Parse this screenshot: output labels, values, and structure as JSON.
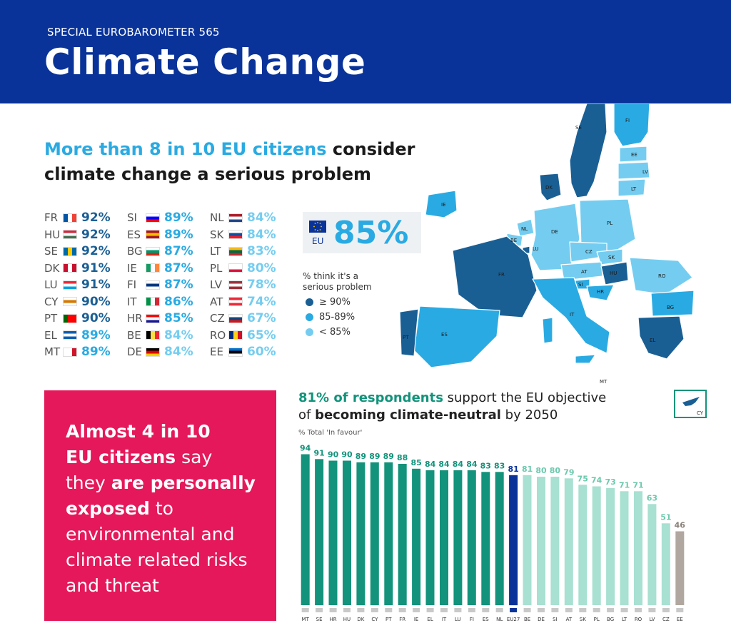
{
  "header": {
    "kicker": "SPECIAL EUROBAROMETER 565",
    "title": "Climate Change"
  },
  "headline": {
    "highlight": "More than 8 in 10 EU citizens",
    "rest1": " consider",
    "rest2": "climate change a serious problem"
  },
  "countries": [
    {
      "code": "FR",
      "value": "92%",
      "flag": [
        "#0055a4",
        "#ffffff",
        "#ef4135"
      ],
      "dir": "v",
      "tier": 1
    },
    {
      "code": "HU",
      "value": "92%",
      "flag": [
        "#cd2a3e",
        "#ffffff",
        "#436f4d"
      ],
      "dir": "h",
      "tier": 1
    },
    {
      "code": "SE",
      "value": "92%",
      "flag": [
        "#006aa7",
        "#fecc00",
        "#006aa7"
      ],
      "dir": "v",
      "tier": 1
    },
    {
      "code": "DK",
      "value": "91%",
      "flag": [
        "#c8102e",
        "#ffffff",
        "#c8102e"
      ],
      "dir": "v",
      "tier": 1
    },
    {
      "code": "LU",
      "value": "91%",
      "flag": [
        "#ed2939",
        "#ffffff",
        "#00a1de"
      ],
      "dir": "h",
      "tier": 1
    },
    {
      "code": "CY",
      "value": "90%",
      "flag": [
        "#ffffff",
        "#d57800",
        "#ffffff"
      ],
      "dir": "h",
      "tier": 1
    },
    {
      "code": "PT",
      "value": "90%",
      "flag": [
        "#006600",
        "#ff0000",
        "#ff0000"
      ],
      "dir": "v",
      "tier": 1
    },
    {
      "code": "EL",
      "value": "89%",
      "flag": [
        "#0d5eaf",
        "#ffffff",
        "#0d5eaf"
      ],
      "dir": "h",
      "tier": 2
    },
    {
      "code": "MT",
      "value": "89%",
      "flag": [
        "#ffffff",
        "#ffffff",
        "#cf142b"
      ],
      "dir": "v",
      "tier": 2
    },
    {
      "code": "SI",
      "value": "89%",
      "flag": [
        "#ffffff",
        "#0000ff",
        "#ff0000"
      ],
      "dir": "h",
      "tier": 2
    },
    {
      "code": "ES",
      "value": "89%",
      "flag": [
        "#aa151b",
        "#f1bf00",
        "#aa151b"
      ],
      "dir": "h",
      "tier": 2
    },
    {
      "code": "BG",
      "value": "87%",
      "flag": [
        "#ffffff",
        "#00966e",
        "#d62612"
      ],
      "dir": "h",
      "tier": 2
    },
    {
      "code": "IE",
      "value": "87%",
      "flag": [
        "#169b62",
        "#ffffff",
        "#ff883e"
      ],
      "dir": "v",
      "tier": 2
    },
    {
      "code": "FI",
      "value": "87%",
      "flag": [
        "#ffffff",
        "#003580",
        "#ffffff"
      ],
      "dir": "h",
      "tier": 2
    },
    {
      "code": "IT",
      "value": "86%",
      "flag": [
        "#009246",
        "#ffffff",
        "#ce2b37"
      ],
      "dir": "v",
      "tier": 2
    },
    {
      "code": "HR",
      "value": "85%",
      "flag": [
        "#ff0000",
        "#ffffff",
        "#171796"
      ],
      "dir": "h",
      "tier": 2
    },
    {
      "code": "BE",
      "value": "84%",
      "flag": [
        "#000000",
        "#fae042",
        "#ed2939"
      ],
      "dir": "v",
      "tier": 3
    },
    {
      "code": "DE",
      "value": "84%",
      "flag": [
        "#000000",
        "#dd0000",
        "#ffce00"
      ],
      "dir": "h",
      "tier": 3
    },
    {
      "code": "NL",
      "value": "84%",
      "flag": [
        "#ae1c28",
        "#ffffff",
        "#21468b"
      ],
      "dir": "h",
      "tier": 3
    },
    {
      "code": "SK",
      "value": "84%",
      "flag": [
        "#ffffff",
        "#0b4ea2",
        "#ee1c25"
      ],
      "dir": "h",
      "tier": 3
    },
    {
      "code": "LT",
      "value": "83%",
      "flag": [
        "#fdb913",
        "#006a44",
        "#c1272d"
      ],
      "dir": "h",
      "tier": 3
    },
    {
      "code": "PL",
      "value": "80%",
      "flag": [
        "#ffffff",
        "#ffffff",
        "#dc143c"
      ],
      "dir": "h",
      "tier": 3
    },
    {
      "code": "LV",
      "value": "78%",
      "flag": [
        "#9e3039",
        "#ffffff",
        "#9e3039"
      ],
      "dir": "h",
      "tier": 3
    },
    {
      "code": "AT",
      "value": "74%",
      "flag": [
        "#ed2939",
        "#ffffff",
        "#ed2939"
      ],
      "dir": "h",
      "tier": 3
    },
    {
      "code": "CZ",
      "value": "67%",
      "flag": [
        "#ffffff",
        "#11457e",
        "#d7141a"
      ],
      "dir": "h",
      "tier": 3
    },
    {
      "code": "RO",
      "value": "65%",
      "flag": [
        "#002b7f",
        "#fcd116",
        "#ce1126"
      ],
      "dir": "v",
      "tier": 3
    },
    {
      "code": "EE",
      "value": "60%",
      "flag": [
        "#0072ce",
        "#000000",
        "#ffffff"
      ],
      "dir": "h",
      "tier": 3
    }
  ],
  "eu_box": {
    "label": "EU",
    "value": "85%"
  },
  "legend": {
    "title_line1": "% think it's a",
    "title_line2": "serious problem",
    "items": [
      {
        "label": "≥ 90%",
        "color": "#1a5f94"
      },
      {
        "label": "85-89%",
        "color": "#2aaae2"
      },
      {
        "label": "< 85%",
        "color": "#74cdf0"
      }
    ]
  },
  "map_labels": [
    "SE",
    "FI",
    "EE",
    "LV",
    "LT",
    "IE",
    "DK",
    "NL",
    "BE",
    "LU",
    "DE",
    "PL",
    "CZ",
    "SK",
    "AT",
    "HU",
    "SI",
    "HR",
    "RO",
    "FR",
    "IT",
    "BG",
    "ES",
    "PT",
    "EL",
    "MT",
    "CY"
  ],
  "colors": {
    "tier1": "#1a5f94",
    "tier2": "#2aaae2",
    "tier3": "#74cdf0",
    "header": "#0a3399",
    "pink": "#e4185a",
    "teal": "#13937b"
  },
  "pink_box": {
    "b1": "Almost 4 in 10",
    "b2": "EU citizens",
    "t2": " say",
    "t3": "they ",
    "b3": "are personally",
    "b4": "exposed",
    "t4": " to",
    "t5": "environmental and",
    "t6": "climate related risks",
    "t7": "and threat"
  },
  "bar_section": {
    "title_green": "81% of respondents",
    "title_rest1": " support the EU objective",
    "title_rest2a": "of ",
    "title_bold": "becoming climate-neutral",
    "title_rest2b": " by 2050",
    "subtitle": "% Total 'In favour'",
    "cy_label": "CY"
  },
  "chart_data": {
    "type": "bar",
    "categories": [
      "MT",
      "SE",
      "HR",
      "HU",
      "DK",
      "CY",
      "PT",
      "FR",
      "IE",
      "EL",
      "IT",
      "LU",
      "FI",
      "ES",
      "NL",
      "EU27",
      "BE",
      "DE",
      "SI",
      "AT",
      "SK",
      "PL",
      "BG",
      "LT",
      "RO",
      "LV",
      "CZ",
      "EE"
    ],
    "values": [
      94,
      91,
      90,
      90,
      89,
      89,
      89,
      88,
      85,
      84,
      84,
      84,
      84,
      83,
      83,
      81,
      81,
      80,
      80,
      79,
      75,
      74,
      73,
      71,
      71,
      63,
      51,
      46
    ],
    "ylim": [
      0,
      100
    ],
    "grid": false,
    "bar_colors": {
      "above_eu": "#13937b",
      "eu": "#0a3399",
      "below_eu": "#a8e0d1",
      "lowest": "#b0a7a0"
    }
  }
}
